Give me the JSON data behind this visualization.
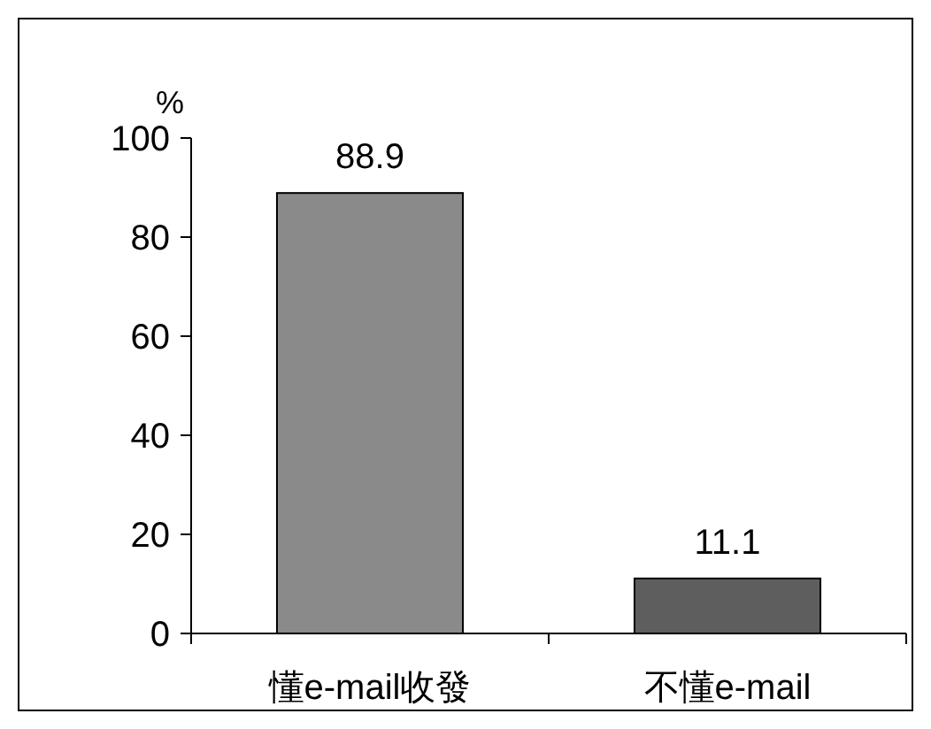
{
  "chart_data": {
    "type": "bar",
    "ylabel": "%",
    "categories": [
      "懂e-mail收發",
      "不懂e-mail"
    ],
    "values": [
      88.9,
      11.1
    ],
    "colors": [
      "#8a8a8a",
      "#5e5e5e"
    ],
    "ylim": [
      0,
      100
    ],
    "yticks": [
      0,
      20,
      40,
      60,
      80,
      100
    ],
    "data_labels": true
  }
}
